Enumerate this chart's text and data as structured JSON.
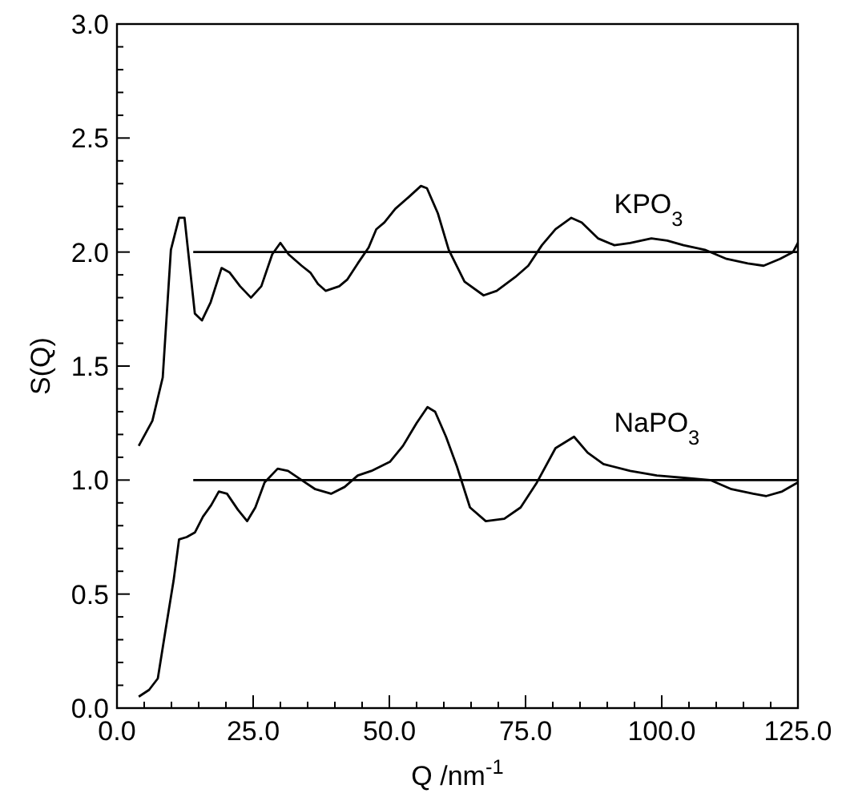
{
  "chart_data": {
    "type": "line",
    "xlabel": "Q /nm$^{-1}$",
    "ylabel": "S(Q)",
    "xlim": [
      0,
      125
    ],
    "ylim": [
      0,
      3
    ],
    "xticks": [
      {
        "value": 0,
        "label": "0.0"
      },
      {
        "value": 5,
        "label": null
      },
      {
        "value": 10,
        "label": null
      },
      {
        "value": 15,
        "label": null
      },
      {
        "value": 20,
        "label": null
      },
      {
        "value": 25,
        "label": "25.0"
      },
      {
        "value": 30,
        "label": null
      },
      {
        "value": 35,
        "label": null
      },
      {
        "value": 40,
        "label": null
      },
      {
        "value": 45,
        "label": null
      },
      {
        "value": 50,
        "label": "50.0"
      },
      {
        "value": 55,
        "label": null
      },
      {
        "value": 60,
        "label": null
      },
      {
        "value": 65,
        "label": null
      },
      {
        "value": 70,
        "label": null
      },
      {
        "value": 75,
        "label": "75.0"
      },
      {
        "value": 80,
        "label": null
      },
      {
        "value": 85,
        "label": null
      },
      {
        "value": 90,
        "label": null
      },
      {
        "value": 95,
        "label": null
      },
      {
        "value": 100,
        "label": "100.0"
      },
      {
        "value": 105,
        "label": null
      },
      {
        "value": 110,
        "label": null
      },
      {
        "value": 115,
        "label": null
      },
      {
        "value": 120,
        "label": null
      },
      {
        "value": 125,
        "label": "125.0"
      }
    ],
    "yticks": [
      {
        "value": 0,
        "label": "0.0"
      },
      {
        "value": 0.1,
        "label": null
      },
      {
        "value": 0.2,
        "label": null
      },
      {
        "value": 0.3,
        "label": null
      },
      {
        "value": 0.4,
        "label": null
      },
      {
        "value": 0.5,
        "label": "0.5"
      },
      {
        "value": 0.6,
        "label": null
      },
      {
        "value": 0.7,
        "label": null
      },
      {
        "value": 0.8,
        "label": null
      },
      {
        "value": 0.9,
        "label": null
      },
      {
        "value": 1,
        "label": "1.0"
      },
      {
        "value": 1.1,
        "label": null
      },
      {
        "value": 1.2,
        "label": null
      },
      {
        "value": 1.3,
        "label": null
      },
      {
        "value": 1.4,
        "label": null
      },
      {
        "value": 1.5,
        "label": "1.5"
      },
      {
        "value": 1.6,
        "label": null
      },
      {
        "value": 1.7,
        "label": null
      },
      {
        "value": 1.8,
        "label": null
      },
      {
        "value": 1.9,
        "label": null
      },
      {
        "value": 2,
        "label": "2.0"
      },
      {
        "value": 2.1,
        "label": null
      },
      {
        "value": 2.2,
        "label": null
      },
      {
        "value": 2.3,
        "label": null
      },
      {
        "value": 2.4,
        "label": null
      },
      {
        "value": 2.5,
        "label": "2.5"
      },
      {
        "value": 2.6,
        "label": null
      },
      {
        "value": 2.7,
        "label": null
      },
      {
        "value": 2.8,
        "label": null
      },
      {
        "value": 2.9,
        "label": null
      },
      {
        "value": 3,
        "label": "3.0"
      }
    ],
    "grid": false,
    "marker": "none",
    "line_style": "solid",
    "series": [
      {
        "name": "KPO$_{3}$",
        "color": "#000000",
        "x": [
          4.0,
          6.5,
          8.4,
          9.9,
          11.4,
          12.4,
          14.3,
          15.6,
          17.2,
          19.2,
          20.7,
          22.6,
          24.6,
          26.5,
          28.5,
          30.0,
          31.5,
          33.9,
          35.5,
          36.9,
          38.3,
          40.8,
          42.3,
          44.2,
          46.2,
          47.6,
          49.1,
          51.1,
          53.5,
          55.8,
          56.9,
          58.9,
          60.9,
          63.8,
          67.3,
          69.7,
          73.1,
          75.5,
          78.0,
          80.5,
          83.4,
          85.3,
          88.3,
          91.3,
          94.2,
          98.1,
          101.0,
          104.0,
          107.9,
          111.9,
          115.8,
          118.7,
          121.7,
          124.1,
          125
        ],
        "values": [
          1.15,
          1.26,
          1.45,
          2.01,
          2.15,
          2.15,
          1.73,
          1.7,
          1.78,
          1.93,
          1.91,
          1.85,
          1.8,
          1.85,
          1.99,
          2.04,
          1.99,
          1.94,
          1.91,
          1.86,
          1.83,
          1.85,
          1.88,
          1.95,
          2.02,
          2.1,
          2.13,
          2.19,
          2.24,
          2.29,
          2.28,
          2.17,
          2.01,
          1.87,
          1.81,
          1.83,
          1.89,
          1.94,
          2.03,
          2.1,
          2.15,
          2.13,
          2.06,
          2.03,
          2.04,
          2.06,
          2.05,
          2.03,
          2.01,
          1.97,
          1.95,
          1.94,
          1.97,
          2.0,
          2.04
        ]
      },
      {
        "name": "NaPO$_{3}$",
        "color": "#000000",
        "x": [
          4.0,
          5.9,
          7.5,
          8.9,
          10.4,
          11.4,
          12.8,
          14.3,
          15.8,
          17.3,
          18.7,
          20.2,
          22.2,
          23.9,
          25.4,
          27.1,
          29.5,
          31.4,
          33.9,
          36.4,
          39.3,
          41.8,
          44.2,
          46.7,
          50.1,
          52.5,
          55.0,
          57.0,
          58.4,
          60.4,
          62.4,
          64.8,
          67.7,
          71.1,
          74.1,
          77.1,
          80.5,
          83.9,
          86.4,
          89.3,
          94.2,
          99.1,
          104.0,
          108.9,
          112.8,
          116.8,
          119.2,
          122.1,
          125
        ],
        "values": [
          0.05,
          0.08,
          0.13,
          0.34,
          0.56,
          0.74,
          0.75,
          0.77,
          0.84,
          0.89,
          0.95,
          0.94,
          0.87,
          0.82,
          0.88,
          0.99,
          1.05,
          1.04,
          1.0,
          0.96,
          0.94,
          0.97,
          1.02,
          1.04,
          1.08,
          1.15,
          1.25,
          1.32,
          1.3,
          1.19,
          1.06,
          0.88,
          0.82,
          0.83,
          0.88,
          0.99,
          1.14,
          1.19,
          1.12,
          1.07,
          1.04,
          1.02,
          1.01,
          1.0,
          0.96,
          0.94,
          0.93,
          0.95,
          0.99
        ]
      },
      {
        "color": "#000000",
        "x": [
          14,
          125
        ],
        "values": [
          2,
          2
        ]
      },
      {
        "color": "#000000",
        "x": [
          14,
          125
        ],
        "values": [
          1,
          1
        ]
      }
    ]
  }
}
